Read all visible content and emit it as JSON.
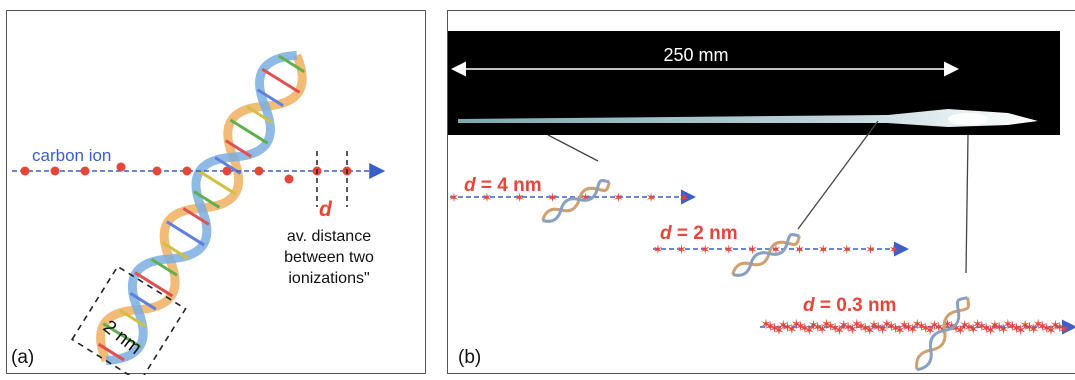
{
  "panel_a": {
    "label": "(a)",
    "carbon_ion_label": "carbon ion",
    "d_symbol": "d",
    "annotation_lines": [
      "av. distance",
      "between two",
      "ionizations\""
    ],
    "dna_size_label": "2 nm"
  },
  "panel_b": {
    "label": "(b)",
    "scale_label": "250 mm",
    "tracks": [
      {
        "d": "d",
        "value": " = 4 nm",
        "ionization_density": 8
      },
      {
        "d": "d",
        "value": " = 2 nm",
        "ionization_density": 11
      },
      {
        "d": "d",
        "value": " = 0.3  nm",
        "ionization_density": 70
      }
    ]
  },
  "colors": {
    "track_line": "#3a5fc8",
    "ionization": "#e8453a",
    "label_red": "#e8453a",
    "carbon_ion_text": "#3a5fc8",
    "beam_background": "#000000"
  },
  "icons": [
    "dna-helix-icon",
    "ionization-star-icon",
    "arrow-icon"
  ]
}
